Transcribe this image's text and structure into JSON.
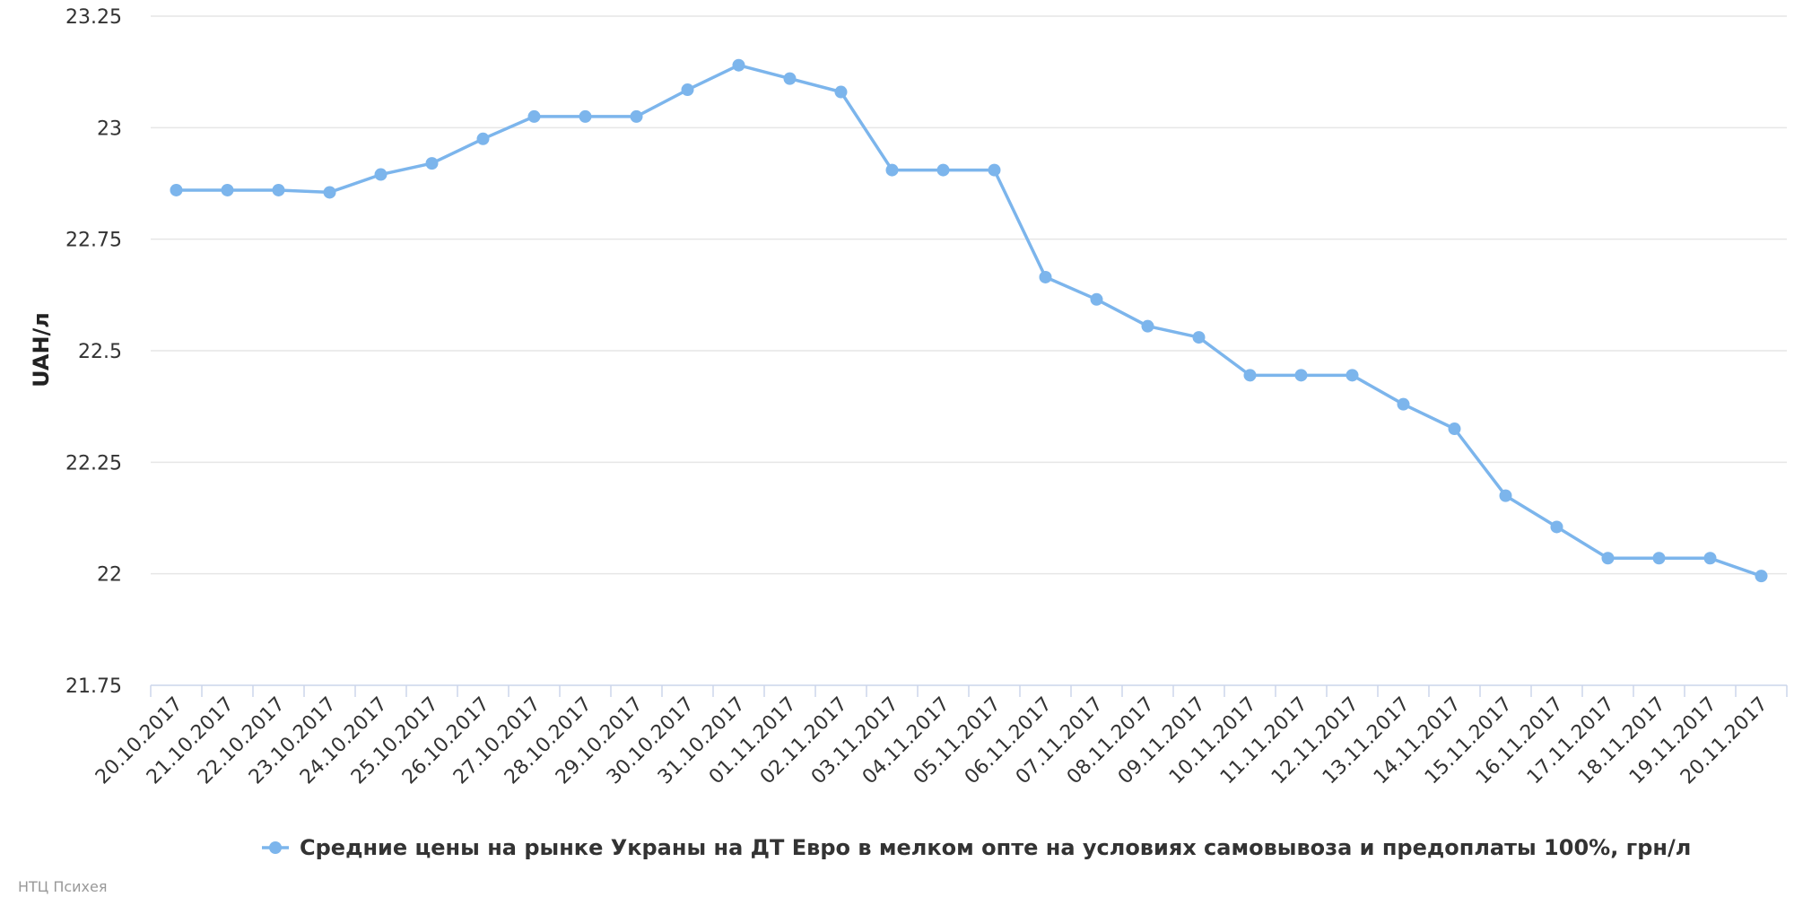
{
  "chart_data": {
    "type": "line",
    "title": "",
    "xlabel": "",
    "ylabel": "UAH/л",
    "ylim": [
      21.75,
      23.25
    ],
    "yticks": [
      21.75,
      22,
      22.25,
      22.5,
      22.75,
      23,
      23.25
    ],
    "ytick_labels": [
      "21.75",
      "22",
      "22.25",
      "22.5",
      "22.75",
      "23",
      "23.25"
    ],
    "grid": true,
    "legend_position": "bottom-center",
    "categories": [
      "20.10.2017",
      "21.10.2017",
      "22.10.2017",
      "23.10.2017",
      "24.10.2017",
      "25.10.2017",
      "26.10.2017",
      "27.10.2017",
      "28.10.2017",
      "29.10.2017",
      "30.10.2017",
      "31.10.2017",
      "01.11.2017",
      "02.11.2017",
      "03.11.2017",
      "04.11.2017",
      "05.11.2017",
      "06.11.2017",
      "07.11.2017",
      "08.11.2017",
      "09.11.2017",
      "10.11.2017",
      "11.11.2017",
      "12.11.2017",
      "13.11.2017",
      "14.11.2017",
      "15.11.2017",
      "16.11.2017",
      "17.11.2017",
      "18.11.2017",
      "19.11.2017",
      "20.11.2017"
    ],
    "series": [
      {
        "name": "Средние цены на рынке Украны на ДТ Евро в мелком опте на условиях самовывоза и предоплаты 100%, грн/л",
        "color": "#7cb5ec",
        "values": [
          22.86,
          22.86,
          22.86,
          22.855,
          22.895,
          22.92,
          22.975,
          23.025,
          23.025,
          23.025,
          23.085,
          23.14,
          23.11,
          23.08,
          22.905,
          22.905,
          22.905,
          22.665,
          22.615,
          22.555,
          22.53,
          22.445,
          22.445,
          22.445,
          22.38,
          22.325,
          22.175,
          22.105,
          22.035,
          22.035,
          22.035,
          21.995
        ]
      }
    ]
  },
  "credits": "НТЦ Психея"
}
